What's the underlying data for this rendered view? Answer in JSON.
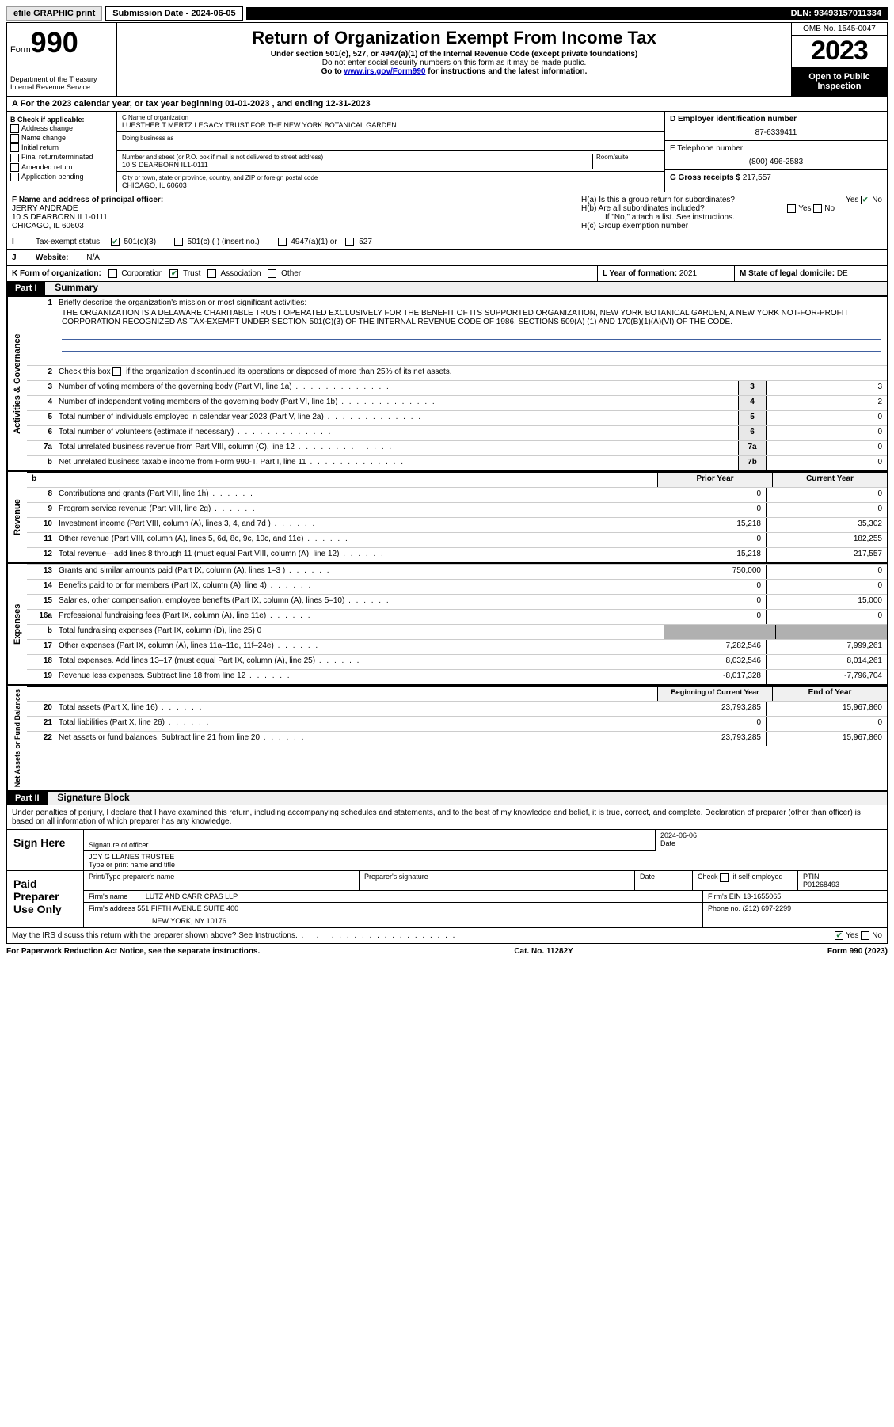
{
  "topbar": {
    "efile": "efile GRAPHIC print",
    "submission_label": "Submission Date - 2024-06-05",
    "dln": "DLN: 93493157011334"
  },
  "header": {
    "form_prefix": "Form",
    "form_number": "990",
    "dept": "Department of the Treasury",
    "irs": "Internal Revenue Service",
    "title": "Return of Organization Exempt From Income Tax",
    "sub1": "Under section 501(c), 527, or 4947(a)(1) of the Internal Revenue Code (except private foundations)",
    "sub2": "Do not enter social security numbers on this form as it may be made public.",
    "sub3_prefix": "Go to ",
    "sub3_link": "www.irs.gov/Form990",
    "sub3_suffix": " for instructions and the latest information.",
    "omb": "OMB No. 1545-0047",
    "year": "2023",
    "open": "Open to Public Inspection"
  },
  "row_a": "For the 2023 calendar year, or tax year beginning 01-01-2023    , and ending 12-31-2023",
  "col_b": {
    "header": "B Check if applicable:",
    "items": [
      "Address change",
      "Name change",
      "Initial return",
      "Final return/terminated",
      "Amended return",
      "Application pending"
    ]
  },
  "col_c": {
    "name_label": "C Name of organization",
    "name_val": "LUESTHER T MERTZ LEGACY TRUST FOR THE NEW YORK BOTANICAL GARDEN",
    "dba_label": "Doing business as",
    "dba_val": "",
    "addr_label": "Number and street (or P.O. box if mail is not delivered to street address)",
    "room_label": "Room/suite",
    "addr_val": "10 S DEARBORN IL1-0111",
    "city_label": "City or town, state or province, country, and ZIP or foreign postal code",
    "city_val": "CHICAGO, IL  60603"
  },
  "col_de": {
    "ein_label": "D Employer identification number",
    "ein_val": "87-6339411",
    "tel_label": "E Telephone number",
    "tel_val": "(800) 496-2583",
    "gross_label": "G Gross receipts $",
    "gross_val": "217,557"
  },
  "row_f": {
    "label": "F  Name and address of principal officer:",
    "name": "JERRY ANDRADE",
    "addr1": "10 S DEARBORN IL1-0111",
    "addr2": "CHICAGO, IL  60603"
  },
  "row_h": {
    "ha": "H(a)  Is this a group return for subordinates?",
    "hb": "H(b)  Are all subordinates included?",
    "hb_note": "If \"No,\" attach a list. See instructions.",
    "hc": "H(c)  Group exemption number ",
    "yes": "Yes",
    "no": "No"
  },
  "row_i": {
    "label": "Tax-exempt status:",
    "opts": [
      "501(c)(3)",
      "501(c) (  ) (insert no.)",
      "4947(a)(1) or",
      "527"
    ]
  },
  "row_j": {
    "label": "Website: ",
    "val": "N/A"
  },
  "row_k": {
    "label": "K Form of organization:",
    "opts": [
      "Corporation",
      "Trust",
      "Association",
      "Other"
    ]
  },
  "row_l": {
    "label": "L Year of formation:",
    "val": "2021"
  },
  "row_m": {
    "label": "M State of legal domicile:",
    "val": "DE"
  },
  "part1": {
    "header": "Part I",
    "title": "Summary",
    "q1": "Briefly describe the organization's mission or most significant activities:",
    "mission": "THE ORGANIZATION IS A DELAWARE CHARITABLE TRUST OPERATED EXCLUSIVELY FOR THE BENEFIT OF ITS SUPPORTED ORGANIZATION, NEW YORK BOTANICAL GARDEN, A NEW YORK NOT-FOR-PROFIT CORPORATION RECOGNIZED AS TAX-EXEMPT UNDER SECTION 501(C)(3) OF THE INTERNAL REVENUE CODE OF 1986, SECTIONS 509(A) (1) AND 170(B)(1)(A)(VI) OF THE CODE.",
    "q2": "Check this box         if the organization discontinued its operations or disposed of more than 25% of its net assets.",
    "lines_gov": [
      {
        "n": "3",
        "d": "Number of voting members of the governing body (Part VI, line 1a)",
        "box": "3",
        "v": "3"
      },
      {
        "n": "4",
        "d": "Number of independent voting members of the governing body (Part VI, line 1b)",
        "box": "4",
        "v": "2"
      },
      {
        "n": "5",
        "d": "Total number of individuals employed in calendar year 2023 (Part V, line 2a)",
        "box": "5",
        "v": "0"
      },
      {
        "n": "6",
        "d": "Total number of volunteers (estimate if necessary)",
        "box": "6",
        "v": "0"
      },
      {
        "n": "7a",
        "d": "Total unrelated business revenue from Part VIII, column (C), line 12",
        "box": "7a",
        "v": "0"
      },
      {
        "n": "b",
        "d": "Net unrelated business taxable income from Form 990-T, Part I, line 11",
        "box": "7b",
        "v": "0"
      }
    ],
    "col_prior": "Prior Year",
    "col_current": "Current Year",
    "lines_rev": [
      {
        "n": "8",
        "d": "Contributions and grants (Part VIII, line 1h)",
        "p": "0",
        "c": "0"
      },
      {
        "n": "9",
        "d": "Program service revenue (Part VIII, line 2g)",
        "p": "0",
        "c": "0"
      },
      {
        "n": "10",
        "d": "Investment income (Part VIII, column (A), lines 3, 4, and 7d )",
        "p": "15,218",
        "c": "35,302"
      },
      {
        "n": "11",
        "d": "Other revenue (Part VIII, column (A), lines 5, 6d, 8c, 9c, 10c, and 11e)",
        "p": "0",
        "c": "182,255"
      },
      {
        "n": "12",
        "d": "Total revenue—add lines 8 through 11 (must equal Part VIII, column (A), line 12)",
        "p": "15,218",
        "c": "217,557"
      }
    ],
    "lines_exp": [
      {
        "n": "13",
        "d": "Grants and similar amounts paid (Part IX, column (A), lines 1–3 )",
        "p": "750,000",
        "c": "0"
      },
      {
        "n": "14",
        "d": "Benefits paid to or for members (Part IX, column (A), line 4)",
        "p": "0",
        "c": "0"
      },
      {
        "n": "15",
        "d": "Salaries, other compensation, employee benefits (Part IX, column (A), lines 5–10)",
        "p": "0",
        "c": "15,000"
      },
      {
        "n": "16a",
        "d": "Professional fundraising fees (Part IX, column (A), line 11e)",
        "p": "0",
        "c": "0"
      }
    ],
    "line_16b": {
      "n": "b",
      "d": "Total fundraising expenses (Part IX, column (D), line 25)",
      "v": "0"
    },
    "lines_exp2": [
      {
        "n": "17",
        "d": "Other expenses (Part IX, column (A), lines 11a–11d, 11f–24e)",
        "p": "7,282,546",
        "c": "7,999,261"
      },
      {
        "n": "18",
        "d": "Total expenses. Add lines 13–17 (must equal Part IX, column (A), line 25)",
        "p": "8,032,546",
        "c": "8,014,261"
      },
      {
        "n": "19",
        "d": "Revenue less expenses. Subtract line 18 from line 12",
        "p": "-8,017,328",
        "c": "-7,796,704"
      }
    ],
    "col_begin": "Beginning of Current Year",
    "col_end": "End of Year",
    "lines_net": [
      {
        "n": "20",
        "d": "Total assets (Part X, line 16)",
        "p": "23,793,285",
        "c": "15,967,860"
      },
      {
        "n": "21",
        "d": "Total liabilities (Part X, line 26)",
        "p": "0",
        "c": "0"
      },
      {
        "n": "22",
        "d": "Net assets or fund balances. Subtract line 21 from line 20",
        "p": "23,793,285",
        "c": "15,967,860"
      }
    ],
    "vert_gov": "Activities & Governance",
    "vert_rev": "Revenue",
    "vert_exp": "Expenses",
    "vert_net": "Net Assets or Fund Balances"
  },
  "part2": {
    "header": "Part II",
    "title": "Signature Block",
    "perjury": "Under penalties of perjury, I declare that I have examined this return, including accompanying schedules and statements, and to the best of my knowledge and belief, it is true, correct, and complete. Declaration of preparer (other than officer) is based on all information of which preparer has any knowledge.",
    "sign_here": "Sign Here",
    "sig_officer_label": "Signature of officer",
    "sig_officer_name": "JOY G LLANES  TRUSTEE",
    "sig_name_label": "Type or print name and title",
    "sig_date_label": "Date",
    "sig_date_val": "2024-06-06",
    "paid": "Paid Preparer Use Only",
    "prep_name_label": "Print/Type preparer's name",
    "prep_sig_label": "Preparer's signature",
    "prep_date_label": "Date",
    "prep_check_label": "Check          if self-employed",
    "ptin_label": "PTIN",
    "ptin_val": "P01268493",
    "firm_name_label": "Firm's name  ",
    "firm_name_val": "LUTZ AND CARR CPAS LLP",
    "firm_ein_label": "Firm's EIN  ",
    "firm_ein_val": "13-1655065",
    "firm_addr_label": "Firm's address ",
    "firm_addr_val": "551 FIFTH AVENUE SUITE 400",
    "firm_addr_val2": "NEW YORK, NY  10176",
    "phone_label": "Phone no.",
    "phone_val": "(212) 697-2299",
    "discuss": "May the IRS discuss this return with the preparer shown above? See Instructions."
  },
  "footer": {
    "left": "For Paperwork Reduction Act Notice, see the separate instructions.",
    "center": "Cat. No. 11282Y",
    "right": "Form 990 (2023)"
  }
}
